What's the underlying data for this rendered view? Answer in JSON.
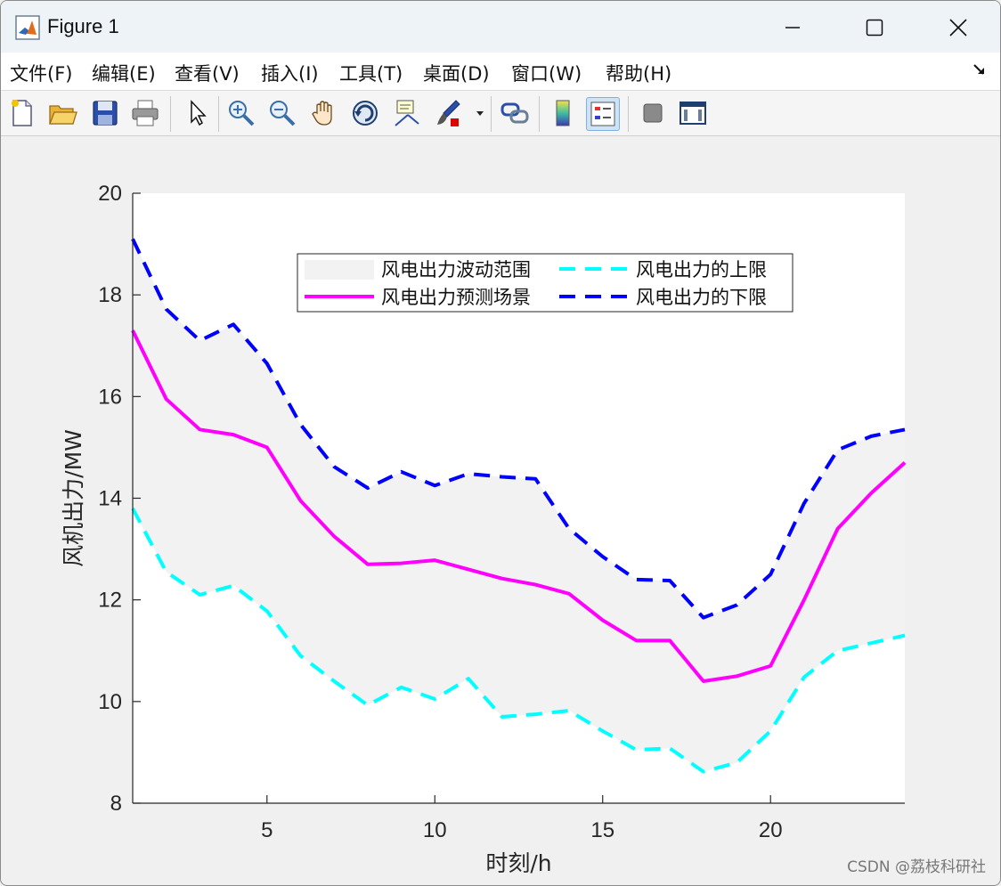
{
  "window": {
    "title": "Figure 1",
    "accent": "#0078d4"
  },
  "menu": {
    "items": [
      "文件(F)",
      "编辑(E)",
      "查看(V)",
      "插入(I)",
      "工具(T)",
      "桌面(D)",
      "窗口(W)",
      "帮助(H)"
    ]
  },
  "toolbar": {
    "icons": [
      "new-figure-icon",
      "open-file-icon",
      "save-icon",
      "print-icon",
      "pointer-icon",
      "zoom-in-icon",
      "zoom-out-icon",
      "pan-hand-icon",
      "rotate-3d-icon",
      "data-cursor-icon",
      "brush-icon",
      "link-plot-icon",
      "colorbar-icon",
      "legend-icon",
      "hide-plot-tools-icon",
      "show-plot-tools-icon"
    ]
  },
  "watermark": "CSDN @荔枝科研社",
  "chart_data": {
    "type": "line",
    "title": "",
    "xlabel": "时刻/h",
    "ylabel": "风机出力/MW",
    "xlim": [
      1,
      24
    ],
    "ylim": [
      8,
      20
    ],
    "xticks": [
      5,
      10,
      15,
      20
    ],
    "yticks": [
      8,
      10,
      12,
      14,
      16,
      18,
      20
    ],
    "grid": false,
    "legend_position": "top-center",
    "x": [
      1,
      2,
      3,
      4,
      5,
      6,
      7,
      8,
      9,
      10,
      11,
      12,
      13,
      14,
      15,
      16,
      17,
      18,
      19,
      20,
      21,
      22,
      23,
      24
    ],
    "band_name": "风电出力波动范围",
    "band_color": "#f2f2f2",
    "series": [
      {
        "name": "风电出力预测场景",
        "color": "#ff00ff",
        "style": "solid",
        "values": [
          17.3,
          15.95,
          15.35,
          15.25,
          15.0,
          13.95,
          13.25,
          12.7,
          12.72,
          12.78,
          12.6,
          12.42,
          12.3,
          12.12,
          11.6,
          11.2,
          11.2,
          10.4,
          10.5,
          10.7,
          12.0,
          13.4,
          14.1,
          14.7
        ]
      },
      {
        "name": "风电出力的上限",
        "color": "#00ffff",
        "style": "dashed",
        "values": [
          13.8,
          12.55,
          12.1,
          12.28,
          11.78,
          10.9,
          10.4,
          9.93,
          10.28,
          10.05,
          10.45,
          9.7,
          9.75,
          9.82,
          9.42,
          9.05,
          9.08,
          8.62,
          8.8,
          9.42,
          10.48,
          11.0,
          11.15,
          11.3
        ]
      },
      {
        "name": "风电出力的下限",
        "color": "#0000ff",
        "style": "dashed",
        "values": [
          19.1,
          17.72,
          17.1,
          17.42,
          16.65,
          15.45,
          14.62,
          14.2,
          14.52,
          14.25,
          14.48,
          14.42,
          14.38,
          13.4,
          12.85,
          12.4,
          12.38,
          11.65,
          11.9,
          12.5,
          13.9,
          14.95,
          15.22,
          15.35
        ]
      }
    ]
  }
}
